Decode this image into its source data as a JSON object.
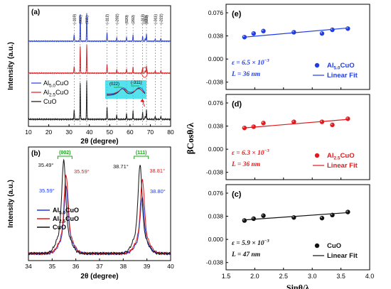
{
  "colors": {
    "blue": "#1f3ce6",
    "red": "#e3191c",
    "black": "#111111",
    "green": "#19a319",
    "cyan": "#19d8e8",
    "bg": "#ffffff"
  },
  "chart_data": [
    {
      "id": "a",
      "type": "line",
      "panel_label": "(a)",
      "xlabel": "2θ (degree)",
      "ylabel": "Intensity (a.u.)",
      "xlim": [
        10,
        80
      ],
      "xticks": [
        "10",
        "20",
        "30",
        "40",
        "50",
        "60",
        "70",
        "80"
      ],
      "series": [
        {
          "name": "Al5.0CuO",
          "color": "#1f3ce6"
        },
        {
          "name": "Al2.5CuO",
          "color": "#e3191c"
        },
        {
          "name": "CuO",
          "color": "#111111"
        }
      ],
      "legend": [
        {
          "base": "Al",
          "sub": "5.0",
          "suffix": "CuO",
          "color": "#1f3ce6"
        },
        {
          "base": "Al",
          "sub": "2.5",
          "suffix": "CuO",
          "color": "#e3191c"
        },
        {
          "base": "CuO",
          "sub": "",
          "suffix": "",
          "color": "#111111"
        }
      ],
      "peaks": [
        {
          "x": 32.5,
          "h": 0.25,
          "label": "(-110)"
        },
        {
          "x": 35.5,
          "h": 0.95,
          "label": "(002)"
        },
        {
          "x": 38.7,
          "h": 1.0,
          "label": "(111)"
        },
        {
          "x": 48.7,
          "h": 0.32,
          "label": "(-112)"
        },
        {
          "x": 53.5,
          "h": 0.12,
          "label": "(-202)"
        },
        {
          "x": 58.3,
          "h": 0.15,
          "label": "(020)"
        },
        {
          "x": 61.5,
          "h": 0.22,
          "label": "(202)"
        },
        {
          "x": 66.2,
          "h": 0.18,
          "label": "(-113)"
        },
        {
          "x": 68.1,
          "h": 0.25,
          "label": "(022)"
        },
        {
          "x": 72.4,
          "h": 0.08,
          "label": "(-311)"
        },
        {
          "x": 75.2,
          "h": 0.1,
          "label": "(-222)"
        },
        {
          "x": 67.5,
          "h": 0.1,
          "label": "(311)"
        }
      ],
      "inset": {
        "labels": [
          "(022)",
          "(-311)"
        ]
      }
    },
    {
      "id": "b",
      "type": "line",
      "panel_label": "(b)",
      "xlabel": "2θ (degree)",
      "ylabel": "Intensity (a.u.)",
      "xlim": [
        34,
        40
      ],
      "xticks": [
        "34",
        "35",
        "36",
        "37",
        "38",
        "39",
        "40"
      ],
      "series": [
        {
          "name": "Al5.0CuO",
          "color": "#1f3ce6"
        },
        {
          "name": "Al2.5CuO",
          "color": "#e3191c"
        },
        {
          "name": "CuO",
          "color": "#111111"
        }
      ],
      "legend": [
        {
          "base": "Al",
          "sub": "5.0",
          "suffix": "CuO",
          "color": "#1f3ce6"
        },
        {
          "base": "Al",
          "sub": "2.5",
          "suffix": "CuO",
          "color": "#e3191c"
        },
        {
          "base": "CuO",
          "sub": "",
          "suffix": "",
          "color": "#111111"
        }
      ],
      "peak_groups": [
        {
          "label": "(002)",
          "peaks": [
            {
              "series": "CuO",
              "x": 35.49,
              "h": 1.0,
              "label": "35.49°"
            },
            {
              "series": "Al2.5CuO",
              "x": 35.59,
              "h": 0.85,
              "label": "35.59°"
            },
            {
              "series": "Al5.0CuO",
              "x": 35.59,
              "h": 0.72,
              "label": "35.59°"
            }
          ]
        },
        {
          "label": "(111)",
          "peaks": [
            {
              "series": "CuO",
              "x": 38.71,
              "h": 0.95,
              "label": "38.71°"
            },
            {
              "series": "Al2.5CuO",
              "x": 38.81,
              "h": 0.8,
              "label": "38.81°"
            },
            {
              "series": "Al5.0CuO",
              "x": 38.8,
              "h": 0.6,
              "label": "38.80°"
            }
          ]
        }
      ]
    },
    {
      "id": "williamson-hall",
      "type": "scatter",
      "ylabel": "βCosθ/λ",
      "xlabel": "Sinθ/λ",
      "xlim": [
        1.5,
        4.0
      ],
      "xticks": [
        "1.5",
        "2.0",
        "2.5",
        "3.0",
        "3.5",
        "4.0"
      ],
      "ylim": [
        -0.05,
        0.09
      ],
      "yticks": [
        "-0.038",
        "0.000",
        "0.038",
        "0.076"
      ],
      "panels": [
        {
          "label": "(e)",
          "color": "#1f3ce6",
          "strain": "ε = 6.5 × 10",
          "exp": "−3",
          "size": "L = 36 nm",
          "legend_point": {
            "base": "Al",
            "sub": "5.0",
            "suffix": "CuO"
          },
          "legend_line": "Linear Fit",
          "x": [
            1.82,
            1.98,
            2.15,
            2.68,
            3.17,
            3.35,
            3.62
          ],
          "y": [
            0.036,
            0.042,
            0.046,
            0.044,
            0.042,
            0.048,
            0.05
          ],
          "fit": [
            0.036,
            0.051
          ]
        },
        {
          "label": "(d)",
          "color": "#e3191c",
          "strain": "ε = 6.3 × 10",
          "exp": "−3",
          "size": "L = 36 nm",
          "legend_point": {
            "base": "Al",
            "sub": "2.5",
            "suffix": "CuO"
          },
          "legend_line": "Linear Fit",
          "x": [
            1.82,
            1.98,
            2.15,
            2.68,
            3.17,
            3.35,
            3.62
          ],
          "y": [
            0.035,
            0.037,
            0.043,
            0.045,
            0.045,
            0.04,
            0.05
          ],
          "fit": [
            0.035,
            0.049
          ]
        },
        {
          "label": "(c)",
          "color": "#111111",
          "strain": "ε = 5.9 × 10",
          "exp": "−3",
          "size": "L = 47 nm",
          "legend_point": {
            "base": "CuO",
            "sub": "",
            "suffix": ""
          },
          "legend_line": "Linear Fit",
          "x": [
            1.82,
            1.98,
            2.15,
            2.68,
            3.17,
            3.35,
            3.62
          ],
          "y": [
            0.031,
            0.034,
            0.039,
            0.036,
            0.035,
            0.04,
            0.045
          ],
          "fit": [
            0.032,
            0.044
          ]
        }
      ]
    }
  ]
}
